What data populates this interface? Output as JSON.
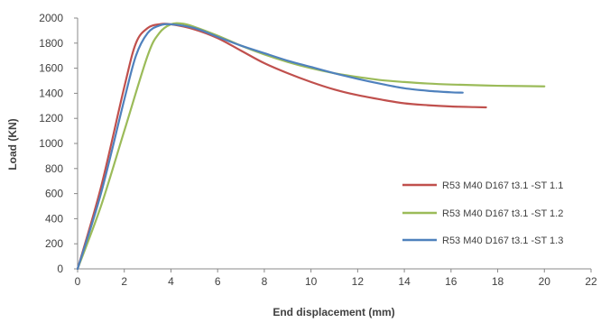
{
  "chart_data": {
    "type": "line",
    "xlabel": "End displacement (mm)",
    "ylabel": "Load (KN)",
    "xlim": [
      0,
      22
    ],
    "ylim": [
      0,
      2000
    ],
    "xticks": [
      0,
      2,
      4,
      6,
      8,
      10,
      12,
      14,
      16,
      18,
      20,
      22
    ],
    "yticks": [
      0,
      200,
      400,
      600,
      800,
      1000,
      1200,
      1400,
      1600,
      1800,
      2000
    ],
    "grid": false,
    "legend_position": "right",
    "series": [
      {
        "name": "R53 M40 D167 t3.1 -ST 1.1",
        "color": "#c0504d",
        "x": [
          0,
          1,
          2,
          2.5,
          3,
          3.5,
          4,
          5,
          6,
          7,
          8,
          9,
          10,
          11,
          12,
          13,
          14,
          15,
          16,
          17,
          17.5
        ],
        "y": [
          0,
          650,
          1450,
          1800,
          1920,
          1950,
          1950,
          1910,
          1840,
          1740,
          1640,
          1560,
          1490,
          1430,
          1385,
          1350,
          1320,
          1305,
          1295,
          1290,
          1288
        ]
      },
      {
        "name": "R53 M40 D167 t3.1 -ST 1.2",
        "color": "#9bbb59",
        "x": [
          0,
          1,
          2,
          3,
          3.5,
          4,
          4.5,
          5,
          6,
          7,
          8,
          9,
          10,
          11,
          12,
          13,
          14,
          15,
          16,
          17,
          18,
          19,
          20
        ],
        "y": [
          0,
          500,
          1100,
          1700,
          1880,
          1950,
          1955,
          1930,
          1860,
          1780,
          1710,
          1650,
          1600,
          1560,
          1530,
          1505,
          1490,
          1478,
          1470,
          1465,
          1460,
          1458,
          1455
        ]
      },
      {
        "name": "R53 M40 D167 t3.1 -ST 1.3",
        "color": "#4f81bd",
        "x": [
          0,
          1,
          2,
          2.5,
          3,
          3.5,
          4,
          5,
          6,
          7,
          8,
          9,
          10,
          11,
          12,
          13,
          14,
          15,
          16,
          16.5
        ],
        "y": [
          0,
          600,
          1350,
          1700,
          1880,
          1940,
          1950,
          1920,
          1850,
          1780,
          1720,
          1660,
          1610,
          1560,
          1515,
          1475,
          1440,
          1420,
          1408,
          1405
        ]
      }
    ]
  }
}
